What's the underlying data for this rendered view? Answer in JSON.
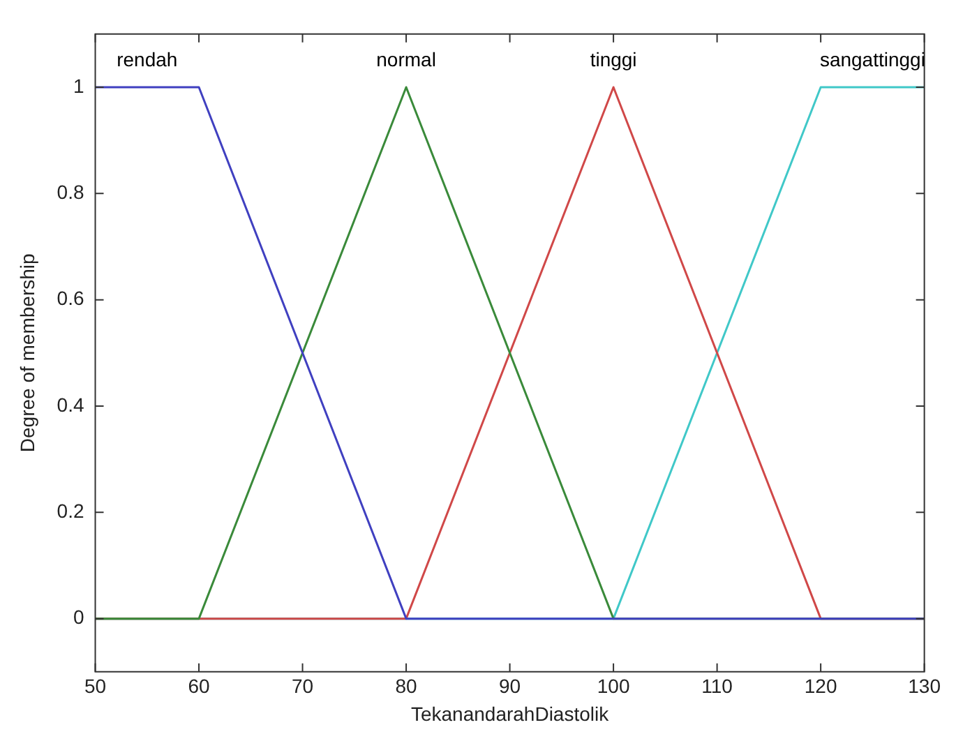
{
  "chart_data": {
    "type": "line",
    "xlabel": "TekanandarahDiastolik",
    "ylabel": "Degree of membership",
    "xlim": [
      50,
      130
    ],
    "xticks": [
      50,
      60,
      70,
      80,
      90,
      100,
      110,
      120,
      130
    ],
    "ylim": [
      -0.1,
      1.1
    ],
    "yticks": [
      0,
      0.2,
      0.4,
      0.6,
      0.8,
      1
    ],
    "series": [
      {
        "name": "rendah",
        "color": "#4040c0",
        "x": [
          50,
          60,
          80,
          130
        ],
        "values": [
          1,
          1,
          0,
          0
        ]
      },
      {
        "name": "normal",
        "color": "#3a8a3a",
        "x": [
          50,
          60,
          80,
          100,
          130
        ],
        "values": [
          0,
          0,
          1,
          0,
          0
        ]
      },
      {
        "name": "tinggi",
        "color": "#d04848",
        "x": [
          50,
          80,
          100,
          120,
          130
        ],
        "values": [
          0,
          0,
          1,
          0,
          0
        ]
      },
      {
        "name": "sangattinggi",
        "color": "#40c8c8",
        "x": [
          50,
          100,
          120,
          130
        ],
        "values": [
          0,
          0,
          1,
          1
        ]
      }
    ]
  }
}
